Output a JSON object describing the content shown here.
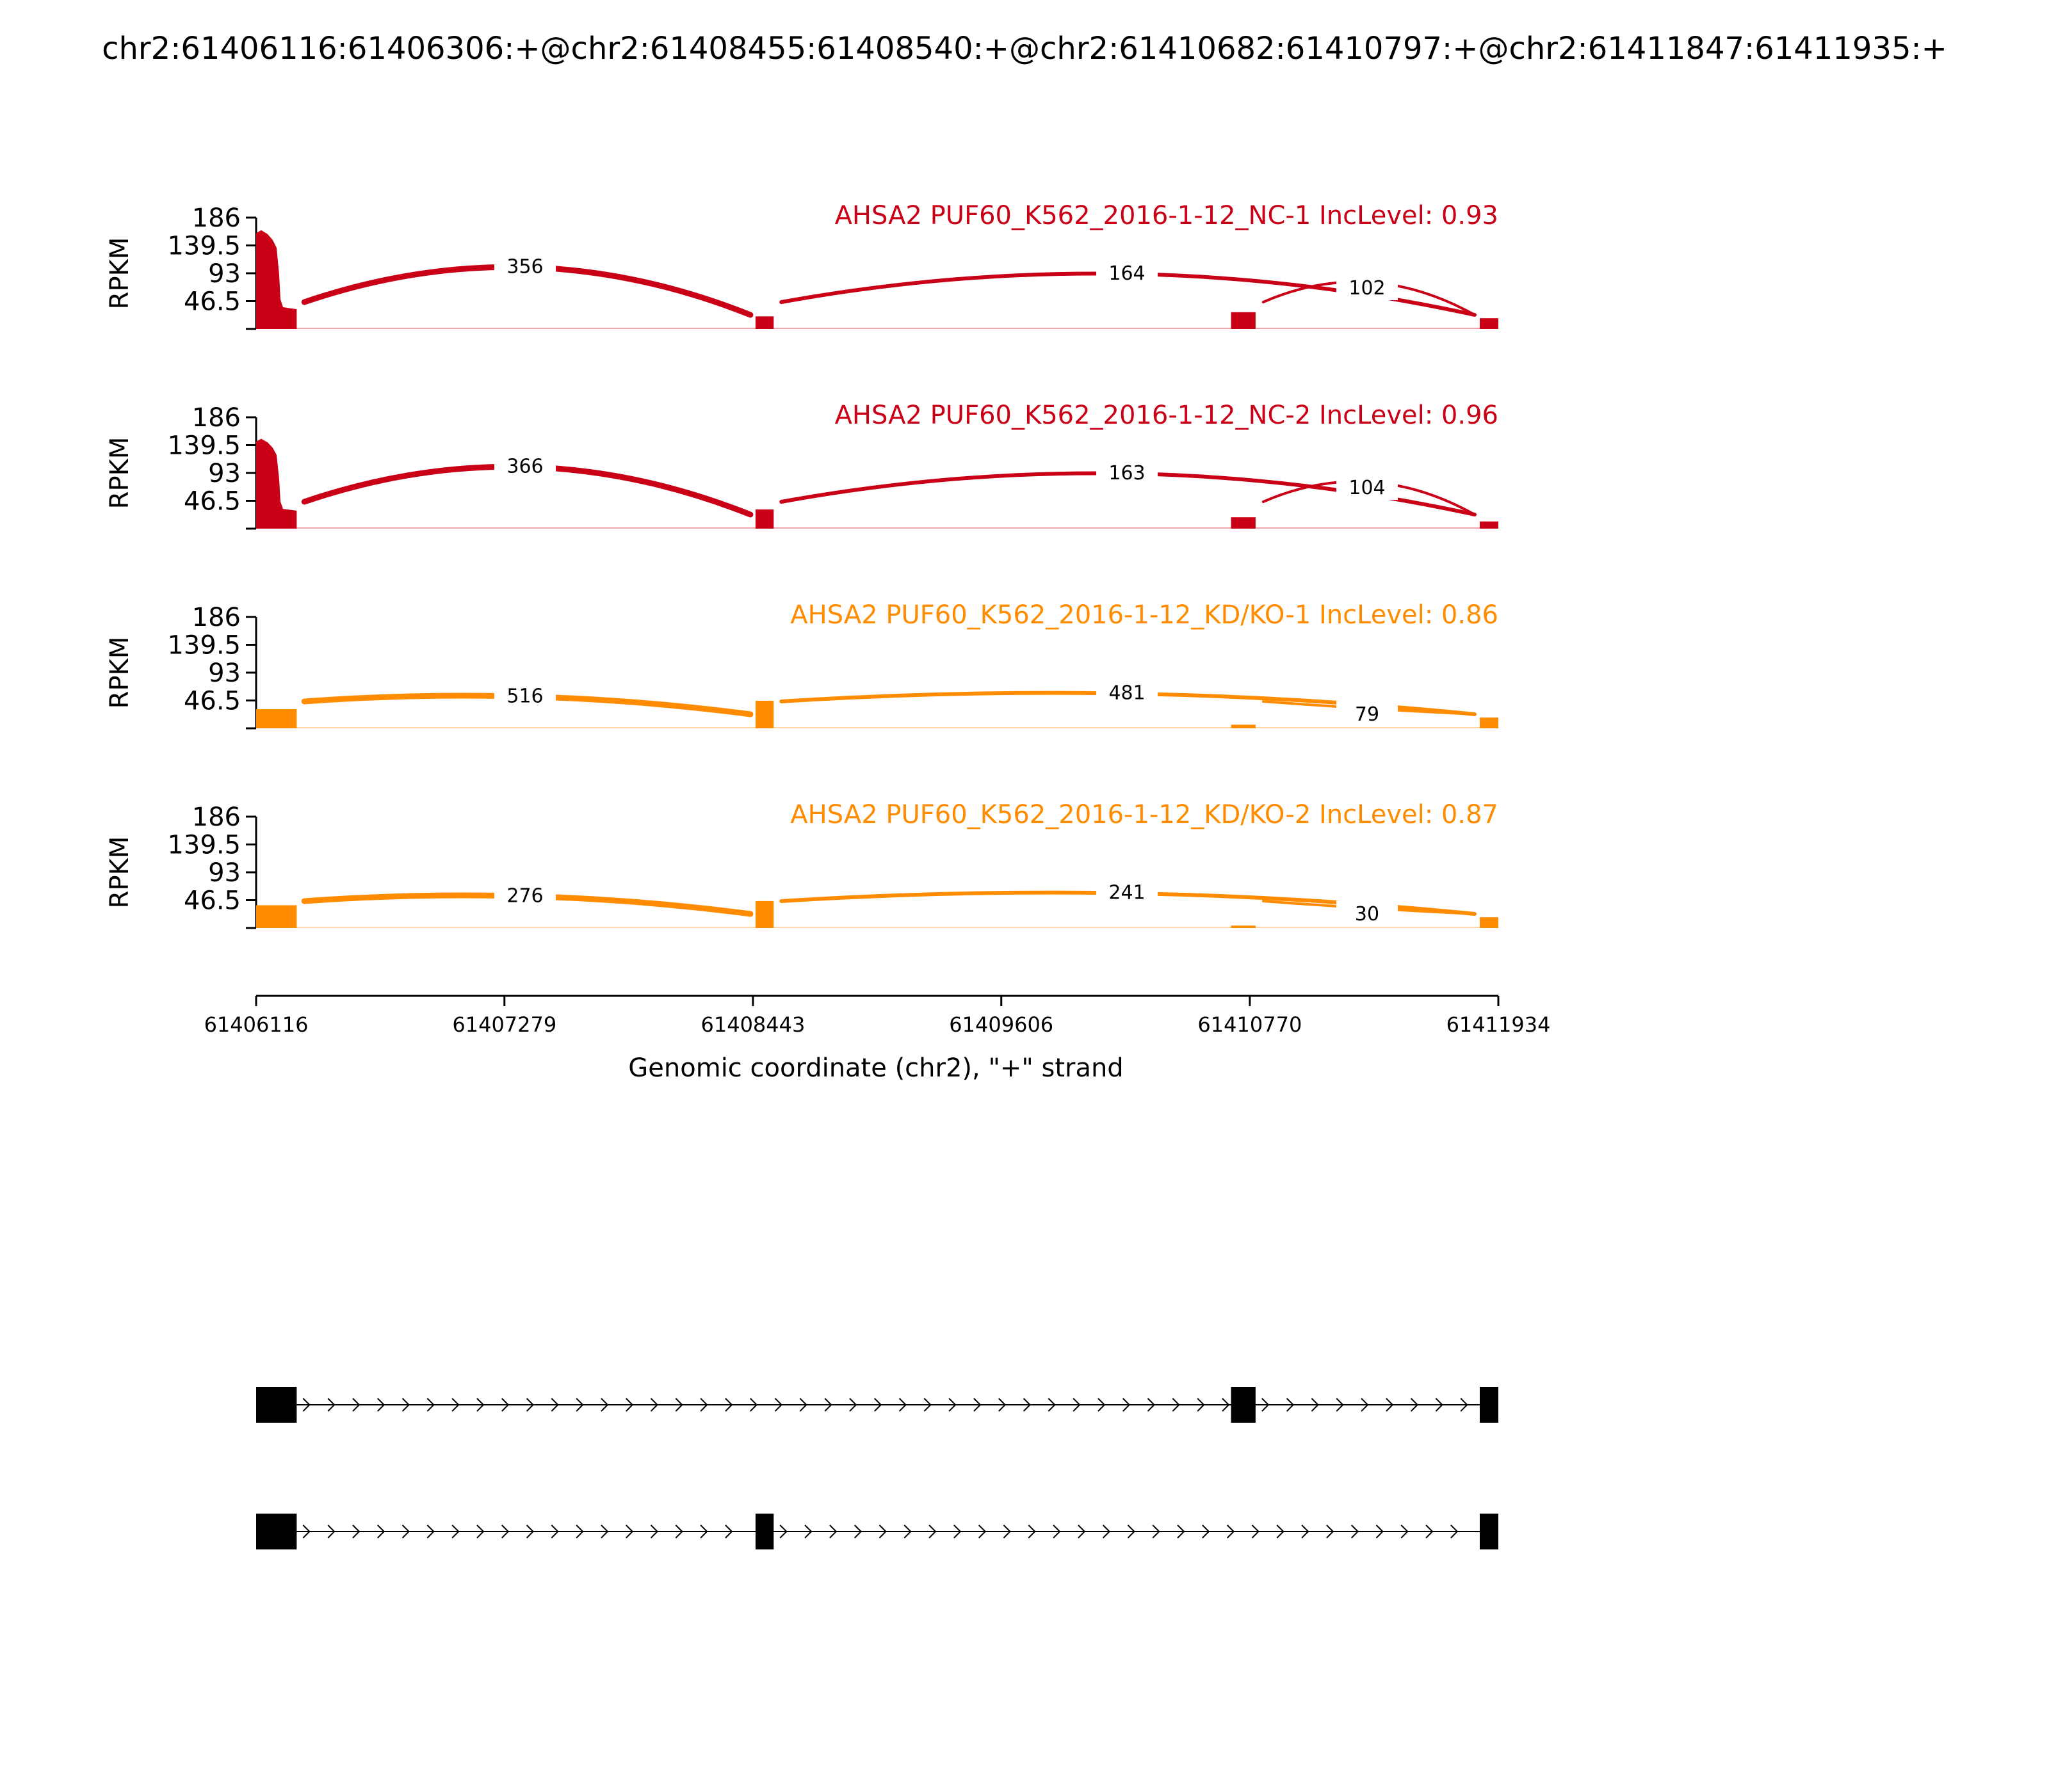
{
  "figure": {
    "title": "chr2:61406116:61406306:+@chr2:61408455:61408540:+@chr2:61410682:61410797:+@chr2:61411847:61411935:+"
  },
  "chart_data": {
    "type": "sashimi",
    "x_label": "Genomic coordinate (chr2), \"+\" strand",
    "x_range": [
      61406116,
      61411934
    ],
    "x_ticks": [
      61406116,
      61407279,
      61408443,
      61409606,
      61410770,
      61411934
    ],
    "y_label": "RPKM",
    "y_range": [
      0,
      186
    ],
    "y_ticks": [
      "186",
      "139.5",
      "93",
      "46.5"
    ],
    "exons": [
      {
        "start": 61406116,
        "end": 61406306
      },
      {
        "start": 61408455,
        "end": 61408540
      },
      {
        "start": 61410682,
        "end": 61410797
      },
      {
        "start": 61411847,
        "end": 61411934
      }
    ],
    "tracks": [
      {
        "label": "AHSA2 PUF60_K562_2016-1-12_NC-1 IncLevel: 0.93",
        "color": "#c90016",
        "exon_coverage": [
          165,
          21,
          28,
          18
        ],
        "junctions": [
          {
            "from": 61406306,
            "to": 61408455,
            "count": "356"
          },
          {
            "from": 61408540,
            "to": 61411847,
            "count": "164"
          },
          {
            "from": 61410797,
            "to": 61411847,
            "count": "102"
          }
        ]
      },
      {
        "label": "AHSA2 PUF60_K562_2016-1-12_NC-2 IncLevel: 0.96",
        "color": "#c90016",
        "exon_coverage": [
          150,
          32,
          19,
          12
        ],
        "junctions": [
          {
            "from": 61406306,
            "to": 61408455,
            "count": "366"
          },
          {
            "from": 61408540,
            "to": 61411847,
            "count": "163"
          },
          {
            "from": 61410797,
            "to": 61411847,
            "count": "104"
          }
        ]
      },
      {
        "label": "AHSA2 PUF60_K562_2016-1-12_KD/KO-1 IncLevel: 0.86",
        "color": "#ff8c00",
        "exon_coverage": [
          32,
          46,
          6,
          18
        ],
        "junctions": [
          {
            "from": 61406306,
            "to": 61408455,
            "count": "516"
          },
          {
            "from": 61408540,
            "to": 61411847,
            "count": "481"
          },
          {
            "from": 61410797,
            "to": 61411847,
            "count": "79"
          }
        ]
      },
      {
        "label": "AHSA2 PUF60_K562_2016-1-12_KD/KO-2 IncLevel: 0.87",
        "color": "#ff8c00",
        "exon_coverage": [
          38,
          45,
          4,
          18
        ],
        "junctions": [
          {
            "from": 61406306,
            "to": 61408455,
            "count": "276"
          },
          {
            "from": 61408540,
            "to": 61411847,
            "count": "241"
          },
          {
            "from": 61410797,
            "to": 61411847,
            "count": "30"
          }
        ]
      }
    ],
    "isoforms": [
      {
        "exons": [
          0,
          2,
          3
        ]
      },
      {
        "exons": [
          0,
          1,
          3
        ]
      }
    ]
  }
}
